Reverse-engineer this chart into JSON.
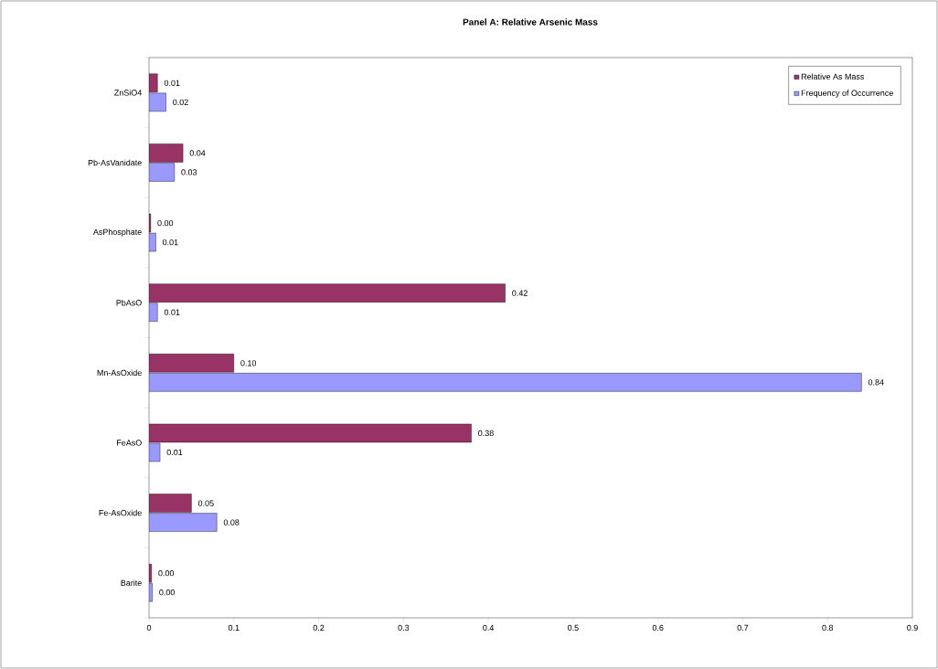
{
  "chart_data": {
    "type": "bar",
    "orientation": "horizontal",
    "title": "Panel A:  Relative Arsenic Mass",
    "categories": [
      "ZnSiO4",
      "Pb-AsVanidate",
      "AsPhosphate",
      "PbAsO",
      "Mn-AsOxide",
      "FeAsO",
      "Fe-AsOxide",
      "Barite"
    ],
    "series": [
      {
        "name": "Relative As Mass",
        "color": "#993366",
        "values": [
          0.01,
          0.04,
          0.002,
          0.42,
          0.1,
          0.38,
          0.05,
          0.003
        ],
        "value_labels": [
          "0.01",
          "0.04",
          "0.00",
          "0.42",
          "0.10",
          "0.38",
          "0.05",
          "0.00"
        ]
      },
      {
        "name": "Frequency of Occurrence",
        "color": "#9999ff",
        "values": [
          0.02,
          0.03,
          0.008,
          0.01,
          0.84,
          0.013,
          0.08,
          0.004
        ],
        "value_labels": [
          "0.02",
          "0.03",
          "0.01",
          "0.01",
          "0.84",
          "0.01",
          "0.08",
          "0.00"
        ]
      }
    ],
    "xlim": [
      0,
      0.9
    ],
    "xticks": [
      0,
      0.1,
      0.2,
      0.3,
      0.4,
      0.5,
      0.6,
      0.7,
      0.8,
      0.9
    ],
    "legend": "top right",
    "grid": false
  }
}
